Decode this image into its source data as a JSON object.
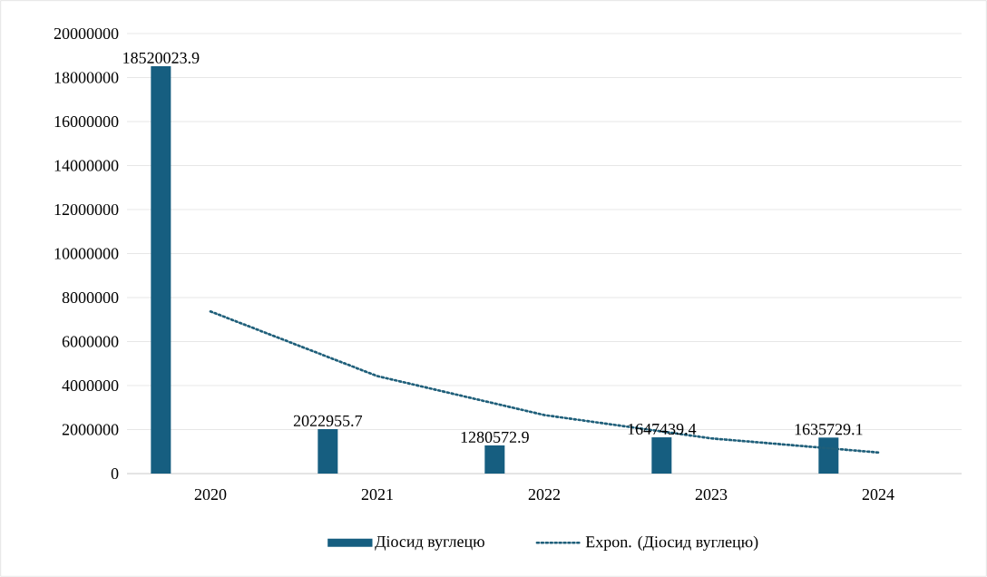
{
  "chart_data": {
    "type": "bar",
    "categories": [
      "2020",
      "2021",
      "2022",
      "2023",
      "2024"
    ],
    "series": [
      {
        "name": "Діосид вуглецю",
        "color": "#165e80",
        "values": [
          18520023.9,
          2022955.7,
          1280572.9,
          1647439.4,
          1635729.1
        ],
        "value_labels": [
          "18520023.9",
          "2022955.7",
          "1280572.9",
          "1647439.4",
          "1635729.1"
        ]
      },
      {
        "name": "Expon. (Діосид вуглецю)",
        "type": "line",
        "color": "#1f5f7a",
        "line_style": "dotted",
        "values": [
          7370000,
          4430000,
          2660000,
          1600000,
          960000
        ]
      }
    ],
    "ylim": [
      0,
      20000000
    ],
    "yticks": [
      0,
      2000000,
      4000000,
      6000000,
      8000000,
      10000000,
      12000000,
      14000000,
      16000000,
      18000000,
      20000000
    ],
    "grid": "y",
    "legend": "bottom"
  }
}
